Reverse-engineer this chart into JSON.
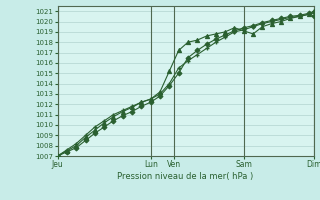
{
  "xlabel": "Pression niveau de la mer( hPa )",
  "background_color": "#c8ece8",
  "plot_bg_color": "#d8f4f0",
  "grid_color": "#a8ccc8",
  "line_color": "#2a6030",
  "vline_color": "#506850",
  "ylim": [
    1007,
    1021.5
  ],
  "ytick_min": 1007,
  "ytick_max": 1021,
  "xtick_major_positions": [
    0,
    4,
    5,
    8,
    11
  ],
  "xtick_major_labels": [
    "Jeu",
    "Lun",
    "Ven",
    "Sam",
    "Dim"
  ],
  "series1_x": [
    0,
    0.4,
    0.8,
    1.2,
    1.6,
    2.0,
    2.4,
    2.8,
    3.2,
    3.6,
    4.0,
    4.4,
    4.8,
    5.2,
    5.6,
    6.0,
    6.4,
    6.8,
    7.2,
    7.6,
    8.0,
    8.4,
    8.8,
    9.2,
    9.6,
    10.0,
    10.4,
    10.8,
    11.0
  ],
  "series1_y": [
    1007.0,
    1007.6,
    1008.2,
    1009.0,
    1009.8,
    1010.4,
    1011.0,
    1011.4,
    1011.8,
    1012.2,
    1012.5,
    1013.0,
    1014.0,
    1015.5,
    1016.2,
    1016.8,
    1017.4,
    1018.0,
    1018.5,
    1019.0,
    1019.2,
    1019.5,
    1019.8,
    1020.0,
    1020.2,
    1020.4,
    1020.5,
    1020.7,
    1021.0
  ],
  "series2_x": [
    0,
    0.4,
    0.8,
    1.2,
    1.6,
    2.0,
    2.4,
    2.8,
    3.2,
    3.6,
    4.0,
    4.4,
    4.8,
    5.2,
    5.6,
    6.0,
    6.4,
    6.8,
    7.2,
    7.6,
    8.0,
    8.4,
    8.8,
    9.2,
    9.6,
    10.0,
    10.4,
    10.8,
    11.0
  ],
  "series2_y": [
    1007.0,
    1007.5,
    1008.0,
    1008.8,
    1009.5,
    1010.2,
    1010.8,
    1011.3,
    1011.7,
    1012.2,
    1012.5,
    1013.2,
    1015.2,
    1017.2,
    1018.0,
    1018.2,
    1018.6,
    1018.8,
    1019.0,
    1019.4,
    1019.1,
    1018.8,
    1019.5,
    1019.8,
    1020.0,
    1020.3,
    1020.5,
    1020.7,
    1021.0
  ],
  "series3_x": [
    0,
    0.4,
    0.8,
    1.2,
    1.6,
    2.0,
    2.4,
    2.8,
    3.2,
    3.6,
    4.0,
    4.4,
    4.8,
    5.2,
    5.6,
    6.0,
    6.4,
    6.8,
    7.2,
    7.6,
    8.0,
    8.4,
    8.8,
    9.2,
    9.6,
    10.0,
    10.4,
    10.8,
    11.0
  ],
  "series3_y": [
    1007.0,
    1007.4,
    1007.8,
    1008.5,
    1009.2,
    1009.8,
    1010.4,
    1010.9,
    1011.3,
    1011.8,
    1012.2,
    1012.8,
    1013.8,
    1015.0,
    1016.5,
    1017.2,
    1017.8,
    1018.3,
    1018.7,
    1019.1,
    1019.4,
    1019.6,
    1019.9,
    1020.1,
    1020.3,
    1020.5,
    1020.6,
    1020.8,
    1020.5
  ]
}
